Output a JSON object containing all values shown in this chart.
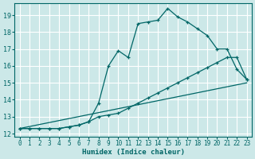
{
  "xlabel": "Humidex (Indice chaleur)",
  "bg_color": "#cce8e8",
  "grid_color": "#aacccc",
  "line_color": "#006666",
  "xlim": [
    -0.5,
    23.5
  ],
  "ylim": [
    11.8,
    19.7
  ],
  "yticks": [
    12,
    13,
    14,
    15,
    16,
    17,
    18,
    19
  ],
  "xticks": [
    0,
    1,
    2,
    3,
    4,
    5,
    6,
    7,
    8,
    9,
    10,
    11,
    12,
    13,
    14,
    15,
    16,
    17,
    18,
    19,
    20,
    21,
    22,
    23
  ],
  "line1_x": [
    0,
    1,
    2,
    3,
    4,
    5,
    6,
    7,
    8,
    9,
    10,
    11,
    12,
    13,
    14,
    15,
    16,
    17,
    18,
    19,
    20,
    21,
    22,
    23
  ],
  "line1_y": [
    12.3,
    12.3,
    12.3,
    12.3,
    12.3,
    12.4,
    12.5,
    12.7,
    13.8,
    16.0,
    16.9,
    16.5,
    18.5,
    18.6,
    18.7,
    19.4,
    18.9,
    18.6,
    18.2,
    17.8,
    17.0,
    17.0,
    15.8,
    15.2
  ],
  "line2_x": [
    0,
    1,
    2,
    3,
    4,
    5,
    6,
    7,
    8,
    9,
    10,
    11,
    12,
    13,
    14,
    15,
    16,
    17,
    18,
    19,
    20,
    21,
    22,
    23
  ],
  "line2_y": [
    12.3,
    12.3,
    12.3,
    12.3,
    12.3,
    12.4,
    12.5,
    12.7,
    13.0,
    13.1,
    13.2,
    13.5,
    13.8,
    14.1,
    14.4,
    14.7,
    15.0,
    15.3,
    15.6,
    15.9,
    16.2,
    16.5,
    16.5,
    15.2
  ],
  "line3_x": [
    0,
    23
  ],
  "line3_y": [
    12.3,
    15.0
  ]
}
